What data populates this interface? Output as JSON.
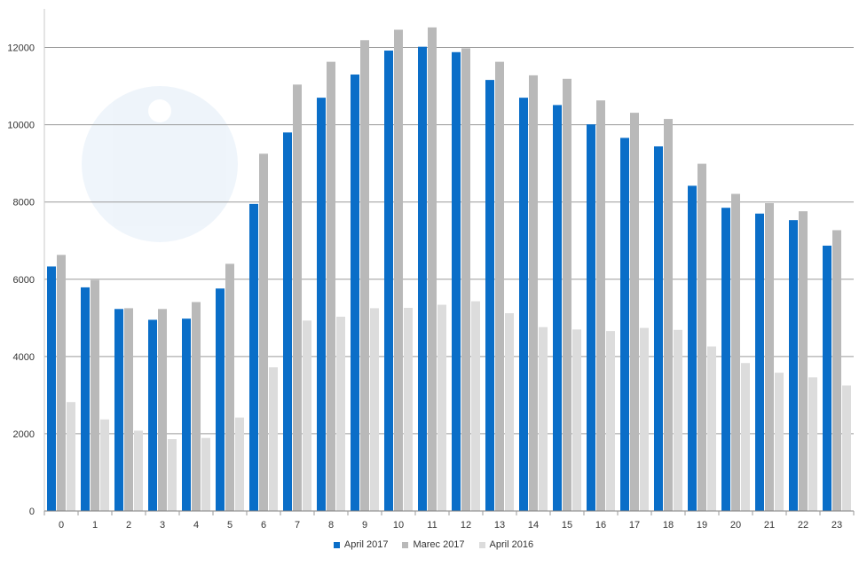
{
  "chart_data": {
    "type": "bar",
    "title": "",
    "xlabel": "",
    "ylabel": "",
    "categories": [
      "0",
      "1",
      "2",
      "3",
      "4",
      "5",
      "6",
      "7",
      "8",
      "9",
      "10",
      "11",
      "12",
      "13",
      "14",
      "15",
      "16",
      "17",
      "18",
      "19",
      "20",
      "21",
      "22",
      "23"
    ],
    "ylim": [
      0,
      13000
    ],
    "yticks": [
      0,
      2000,
      4000,
      6000,
      8000,
      10000,
      12000
    ],
    "grid": true,
    "legend_position": "bottom-center",
    "series": [
      {
        "name": "April 2017",
        "color": "#0a6ec8",
        "values": [
          6330,
          5790,
          5230,
          4950,
          4980,
          5760,
          7950,
          9800,
          10700,
          11300,
          11920,
          12020,
          11880,
          11160,
          10700,
          10510,
          10010,
          9660,
          9440,
          8420,
          7850,
          7700,
          7530,
          6870
        ]
      },
      {
        "name": "Marec 2017",
        "color": "#b9b9b9",
        "values": [
          6630,
          5980,
          5250,
          5230,
          5410,
          6400,
          9250,
          11040,
          11630,
          12190,
          12460,
          12520,
          11980,
          11630,
          11280,
          11190,
          10630,
          10310,
          10150,
          8990,
          8210,
          7970,
          7760,
          7270
        ]
      },
      {
        "name": "April 2016",
        "color": "#dcdcdc",
        "values": [
          2820,
          2370,
          2080,
          1860,
          1890,
          2420,
          3720,
          4930,
          5030,
          5250,
          5260,
          5340,
          5430,
          5120,
          4760,
          4700,
          4660,
          4740,
          4690,
          4260,
          3830,
          3580,
          3460,
          3250
        ]
      }
    ]
  }
}
